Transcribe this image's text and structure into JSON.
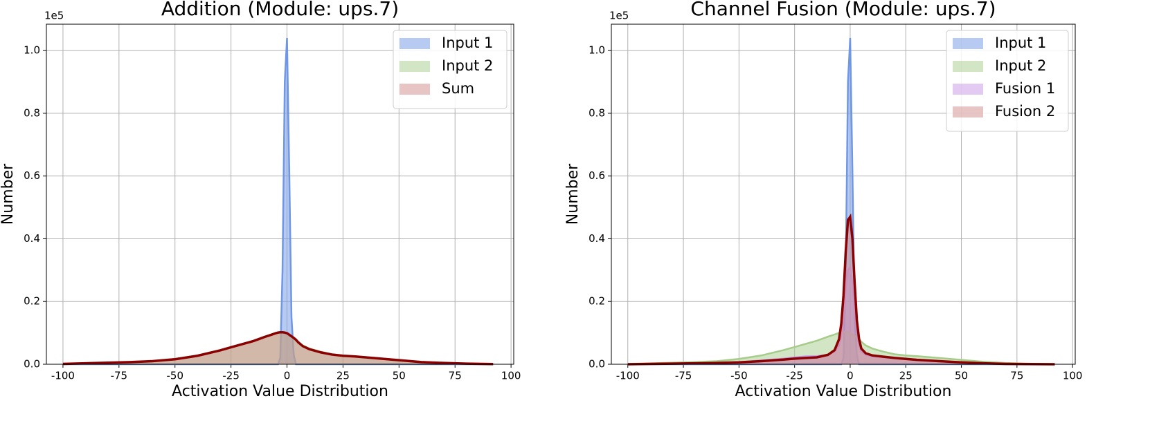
{
  "chart_data": [
    {
      "type": "area",
      "title": "Addition (Module: ups.7)",
      "x_label": "Activation Value Distribution",
      "y_label": "Number",
      "y_offset_label": "1e5",
      "x": [
        -100,
        -90,
        -80,
        -70,
        -60,
        -50,
        -40,
        -30,
        -25,
        -20,
        -15,
        -10,
        -7,
        -5,
        -4,
        -3,
        -2,
        -1,
        0,
        1,
        2,
        3,
        4,
        5,
        7,
        10,
        15,
        20,
        25,
        30,
        40,
        50,
        60,
        70,
        80,
        92
      ],
      "series": [
        {
          "name": "Input 1",
          "color": "#6f97e6",
          "values": [
            0,
            0,
            0,
            0,
            0,
            0,
            0,
            0,
            0,
            0,
            0,
            0,
            0,
            0,
            0,
            0.02,
            0.3,
            0.9,
            1.04,
            0.62,
            0.15,
            0.03,
            0,
            0,
            0,
            0,
            0,
            0,
            0,
            0,
            0,
            0,
            0,
            0,
            0,
            0
          ]
        },
        {
          "name": "Input 2",
          "color": "#a6cc8a",
          "values": [
            0.001,
            0.003,
            0.005,
            0.007,
            0.01,
            0.017,
            0.028,
            0.045,
            0.055,
            0.065,
            0.075,
            0.088,
            0.095,
            0.1,
            0.102,
            0.103,
            0.103,
            0.102,
            0.1,
            0.095,
            0.09,
            0.085,
            0.08,
            0.072,
            0.06,
            0.05,
            0.04,
            0.032,
            0.028,
            0.026,
            0.02,
            0.014,
            0.008,
            0.004,
            0.002,
            0.0005
          ]
        },
        {
          "name": "Sum",
          "color": "#d08c8c",
          "line_color": "#8b0000",
          "values": [
            0.001,
            0.003,
            0.005,
            0.007,
            0.01,
            0.016,
            0.027,
            0.044,
            0.054,
            0.064,
            0.074,
            0.087,
            0.094,
            0.099,
            0.101,
            0.102,
            0.102,
            0.101,
            0.099,
            0.094,
            0.089,
            0.084,
            0.078,
            0.07,
            0.058,
            0.048,
            0.038,
            0.031,
            0.027,
            0.025,
            0.019,
            0.013,
            0.007,
            0.004,
            0.002,
            0.0005
          ]
        }
      ],
      "xlim": [
        -107.4,
        101.2
      ],
      "ylim": [
        0,
        1.084
      ],
      "xticks": [
        -100,
        -75,
        -50,
        -25,
        0,
        25,
        50,
        75,
        100
      ],
      "yticks": [
        {
          "value": 0,
          "label": "0.0"
        },
        0.2,
        0.4,
        0.6,
        0.8,
        {
          "value": 1,
          "label": "1.0"
        }
      ],
      "grid": true,
      "legend": "upper right"
    },
    {
      "type": "area",
      "title": "Channel Fusion (Module: ups.7)",
      "x_label": "Activation Value Distribution",
      "y_label": "Number",
      "y_offset_label": "1e5",
      "x": [
        -100,
        -90,
        -80,
        -70,
        -60,
        -50,
        -40,
        -30,
        -25,
        -20,
        -15,
        -10,
        -7,
        -5,
        -4,
        -3,
        -2,
        -1,
        0,
        1,
        2,
        3,
        4,
        5,
        7,
        10,
        15,
        20,
        25,
        30,
        40,
        50,
        60,
        70,
        80,
        92
      ],
      "series": [
        {
          "name": "Input 1",
          "color": "#6f97e6",
          "values": [
            0,
            0,
            0,
            0,
            0,
            0,
            0,
            0,
            0,
            0,
            0,
            0,
            0,
            0,
            0,
            0.02,
            0.3,
            0.9,
            1.04,
            0.62,
            0.15,
            0.03,
            0,
            0,
            0,
            0,
            0,
            0,
            0,
            0,
            0,
            0,
            0,
            0,
            0,
            0
          ]
        },
        {
          "name": "Input 2",
          "color": "#a6cc8a",
          "values": [
            0.001,
            0.003,
            0.005,
            0.007,
            0.01,
            0.017,
            0.028,
            0.045,
            0.055,
            0.065,
            0.075,
            0.088,
            0.095,
            0.1,
            0.102,
            0.103,
            0.103,
            0.102,
            0.1,
            0.095,
            0.09,
            0.085,
            0.08,
            0.072,
            0.06,
            0.05,
            0.04,
            0.032,
            0.028,
            0.026,
            0.02,
            0.014,
            0.008,
            0.004,
            0.002,
            0.0005
          ]
        },
        {
          "name": "Fusion 1",
          "color": "#c896e8",
          "values": [
            0,
            0.001,
            0.002,
            0.003,
            0.004,
            0.007,
            0.012,
            0.018,
            0.022,
            0.025,
            0.026,
            0.03,
            0.04,
            0.06,
            0.09,
            0.15,
            0.24,
            0.3,
            0.31,
            0.26,
            0.17,
            0.1,
            0.06,
            0.04,
            0.03,
            0.025,
            0.022,
            0.02,
            0.018,
            0.015,
            0.01,
            0.006,
            0.003,
            0.001,
            0.0005,
            0
          ]
        },
        {
          "name": "Fusion 2",
          "color": "#d08c8c",
          "line_color": "#8b0000",
          "values": [
            0,
            0.001,
            0.002,
            0.003,
            0.004,
            0.006,
            0.01,
            0.015,
            0.018,
            0.02,
            0.022,
            0.03,
            0.045,
            0.08,
            0.13,
            0.22,
            0.36,
            0.46,
            0.47,
            0.4,
            0.26,
            0.14,
            0.08,
            0.05,
            0.035,
            0.028,
            0.024,
            0.02,
            0.017,
            0.014,
            0.01,
            0.006,
            0.003,
            0.001,
            0.0005,
            0
          ]
        }
      ],
      "xlim": [
        -107.4,
        101.2
      ],
      "ylim": [
        0,
        1.084
      ],
      "xticks": [
        -100,
        -75,
        -50,
        -25,
        0,
        25,
        50,
        75,
        100
      ],
      "yticks": [
        {
          "value": 0,
          "label": "0.0"
        },
        0.2,
        0.4,
        0.6,
        0.8,
        {
          "value": 1,
          "label": "1.0"
        }
      ],
      "grid": true,
      "legend": "upper right"
    }
  ]
}
